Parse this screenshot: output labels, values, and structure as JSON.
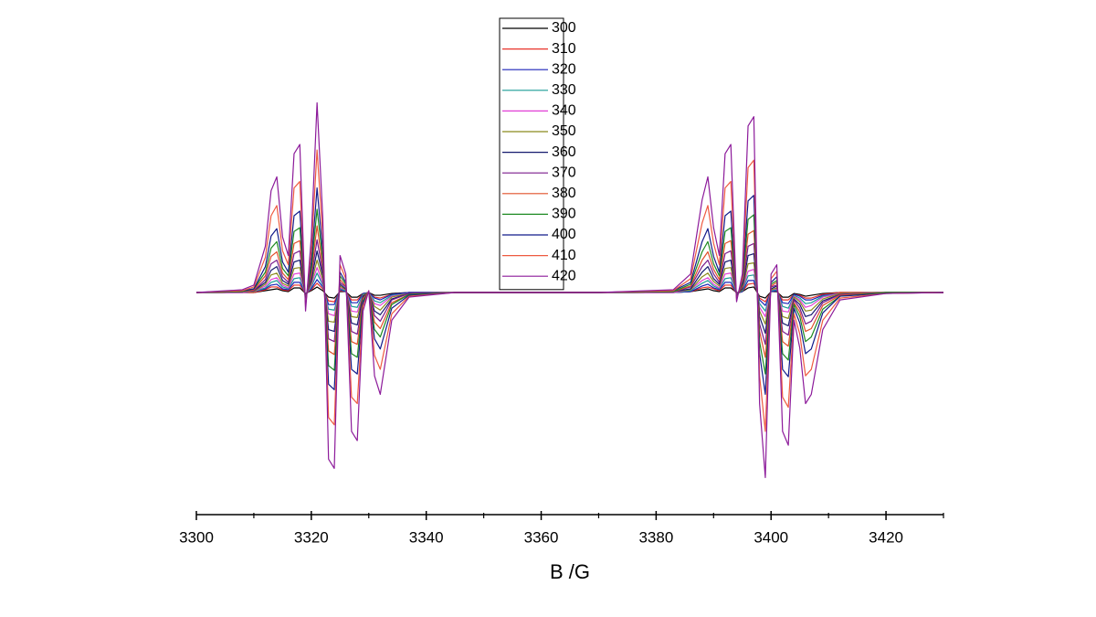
{
  "chart_data": {
    "type": "line",
    "xlabel": "B /G",
    "xlim": [
      3300,
      3430
    ],
    "xticks": [
      3300,
      3320,
      3340,
      3360,
      3380,
      3400,
      3420
    ],
    "xminor": [
      3310,
      3330,
      3350,
      3370,
      3390,
      3410,
      3430
    ],
    "ylim": [
      -240,
      245
    ],
    "legend": "top",
    "x": [
      3300,
      3308,
      3310,
      3312,
      3313,
      3314,
      3315,
      3316,
      3317,
      3318,
      3319,
      3320,
      3321,
      3322,
      3323,
      3324,
      3325,
      3326,
      3327,
      3328,
      3329,
      3330,
      3331,
      3332,
      3334,
      3337,
      3345,
      3370,
      3383,
      3386,
      3388,
      3389,
      3390,
      3391,
      3392,
      3393,
      3394,
      3395,
      3396,
      3397,
      3398,
      3399,
      3400,
      3401,
      3402,
      3403,
      3404,
      3405,
      3406,
      3407,
      3409,
      3412,
      3420,
      3430
    ],
    "series": [
      {
        "name": "300",
        "color": "#000000",
        "values": [
          0,
          0,
          0,
          2,
          3,
          4,
          2,
          1,
          5,
          5,
          -1,
          2,
          6,
          2,
          -5,
          -6,
          1,
          1,
          -5,
          -5,
          -1,
          0,
          -3,
          -3,
          -1,
          0,
          0,
          0,
          0,
          1,
          3,
          4,
          2,
          1,
          5,
          5,
          0,
          1,
          5,
          6,
          -4,
          -6,
          1,
          1,
          -5,
          -5,
          -1,
          -2,
          -4,
          -3,
          -1,
          0,
          0,
          0
        ]
      },
      {
        "name": "310",
        "color": "#e8322a",
        "values": [
          0,
          0,
          0,
          3,
          6,
          6,
          3,
          2,
          8,
          8,
          -1,
          3,
          10,
          4,
          -9,
          -10,
          2,
          1,
          -8,
          -8,
          -1,
          0,
          -5,
          -6,
          -2,
          0,
          0,
          0,
          0,
          1,
          5,
          6,
          4,
          2,
          8,
          8,
          -1,
          1,
          9,
          10,
          -6,
          -10,
          1,
          2,
          -8,
          -8,
          -2,
          -3,
          -6,
          -6,
          -2,
          0,
          0,
          0
        ]
      },
      {
        "name": "320",
        "color": "#1a23b8",
        "values": [
          0,
          0,
          1,
          4,
          8,
          9,
          4,
          3,
          11,
          11,
          -1,
          4,
          14,
          6,
          -13,
          -13,
          3,
          1,
          -11,
          -11,
          -1,
          0,
          -6,
          -8,
          -2,
          0,
          0,
          0,
          0,
          1,
          7,
          9,
          5,
          3,
          11,
          11,
          -1,
          1,
          13,
          13,
          -8,
          -14,
          1,
          2,
          -11,
          -12,
          -2,
          -4,
          -8,
          -8,
          -3,
          -1,
          0,
          0
        ]
      },
      {
        "name": "330",
        "color": "#1a9c95",
        "values": [
          0,
          0,
          1,
          5,
          11,
          13,
          6,
          4,
          15,
          16,
          -2,
          6,
          21,
          8,
          -18,
          -19,
          4,
          2,
          -15,
          -16,
          -2,
          0,
          -9,
          -11,
          -3,
          -1,
          0,
          0,
          0,
          2,
          10,
          13,
          7,
          4,
          15,
          16,
          -1,
          2,
          18,
          19,
          -12,
          -20,
          2,
          3,
          -15,
          -17,
          -3,
          -6,
          -12,
          -11,
          -4,
          -1,
          0,
          0
        ]
      },
      {
        "name": "340",
        "color": "#e23fd6",
        "values": [
          0,
          0,
          1,
          7,
          14,
          16,
          8,
          5,
          20,
          21,
          -3,
          8,
          27,
          10,
          -23,
          -25,
          5,
          3,
          -20,
          -21,
          -3,
          0,
          -12,
          -14,
          -4,
          -1,
          0,
          0,
          0,
          3,
          13,
          16,
          9,
          5,
          20,
          21,
          -1,
          3,
          23,
          25,
          -16,
          -26,
          3,
          4,
          -20,
          -21,
          -4,
          -8,
          -16,
          -14,
          -5,
          -1,
          0,
          0
        ]
      },
      {
        "name": "350",
        "color": "#8a8a1c",
        "values": [
          0,
          1,
          1,
          9,
          19,
          21,
          10,
          7,
          26,
          27,
          -3,
          10,
          35,
          14,
          -31,
          -32,
          7,
          3,
          -26,
          -27,
          -3,
          0,
          -15,
          -19,
          -5,
          -1,
          0,
          0,
          1,
          3,
          17,
          21,
          12,
          7,
          26,
          27,
          -2,
          3,
          31,
          32,
          -20,
          -34,
          3,
          5,
          -26,
          -28,
          -5,
          -10,
          -20,
          -19,
          -7,
          -1,
          0,
          0
        ]
      },
      {
        "name": "360",
        "color": "#151a6e",
        "values": [
          0,
          1,
          2,
          11,
          24,
          28,
          13,
          9,
          33,
          35,
          -4,
          13,
          45,
          18,
          -40,
          -42,
          9,
          4,
          -33,
          -35,
          -4,
          0,
          -20,
          -24,
          -7,
          -1,
          0,
          0,
          1,
          4,
          22,
          28,
          15,
          9,
          33,
          35,
          -2,
          4,
          40,
          42,
          -26,
          -44,
          4,
          7,
          -33,
          -36,
          -7,
          -13,
          -26,
          -24,
          -9,
          -2,
          0,
          0
        ]
      },
      {
        "name": "370",
        "color": "#7a1a8c",
        "values": [
          0,
          1,
          2,
          14,
          31,
          35,
          17,
          11,
          42,
          45,
          -6,
          17,
          57,
          22,
          -50,
          -53,
          11,
          6,
          -42,
          -45,
          -6,
          1,
          -25,
          -31,
          -8,
          -1,
          0,
          0,
          1,
          6,
          28,
          35,
          20,
          11,
          42,
          45,
          -3,
          6,
          50,
          53,
          -34,
          -56,
          6,
          8,
          -42,
          -46,
          -8,
          -17,
          -34,
          -31,
          -11,
          -2,
          0,
          0
        ]
      },
      {
        "name": "380",
        "color": "#e0502a",
        "values": [
          0,
          1,
          3,
          18,
          39,
          44,
          21,
          14,
          53,
          56,
          -7,
          21,
          72,
          28,
          -63,
          -67,
          14,
          7,
          -53,
          -56,
          -7,
          1,
          -32,
          -39,
          -11,
          -2,
          0,
          0,
          1,
          7,
          35,
          44,
          25,
          14,
          53,
          56,
          -4,
          7,
          63,
          67,
          -42,
          -70,
          7,
          11,
          -53,
          -58,
          -11,
          -21,
          -42,
          -39,
          -14,
          -3,
          0,
          0
        ]
      },
      {
        "name": "390",
        "color": "#1e8a22",
        "values": [
          0,
          1,
          4,
          22,
          48,
          55,
          26,
          18,
          66,
          70,
          -9,
          26,
          90,
          35,
          -79,
          -84,
          18,
          9,
          -66,
          -70,
          -9,
          1,
          -40,
          -48,
          -13,
          -2,
          0,
          0,
          1,
          9,
          44,
          55,
          31,
          18,
          66,
          70,
          -4,
          9,
          79,
          84,
          -53,
          -88,
          9,
          13,
          -66,
          -73,
          -13,
          -26,
          -53,
          -48,
          -18,
          -4,
          0,
          0
        ]
      },
      {
        "name": "400",
        "color": "#121a8a",
        "values": [
          0,
          2,
          4,
          28,
          61,
          69,
          33,
          22,
          83,
          88,
          -11,
          33,
          113,
          44,
          -99,
          -105,
          22,
          11,
          -83,
          -88,
          -11,
          1,
          -50,
          -61,
          -17,
          -3,
          0,
          0,
          2,
          11,
          55,
          69,
          39,
          22,
          83,
          88,
          -6,
          11,
          99,
          105,
          -66,
          -110,
          11,
          17,
          -83,
          -91,
          -17,
          -33,
          -66,
          -61,
          -22,
          -4,
          -1,
          0
        ]
      },
      {
        "name": "410",
        "color": "#ee5a40",
        "values": [
          0,
          2,
          6,
          38,
          83,
          94,
          45,
          30,
          113,
          120,
          -15,
          45,
          154,
          60,
          -135,
          -143,
          30,
          15,
          -113,
          -120,
          -15,
          2,
          -68,
          -83,
          -23,
          -4,
          0,
          0,
          2,
          15,
          75,
          94,
          53,
          30,
          113,
          120,
          -8,
          15,
          135,
          143,
          -90,
          -150,
          15,
          23,
          -113,
          -124,
          -23,
          -45,
          -90,
          -83,
          -30,
          -6,
          -1,
          0
        ]
      },
      {
        "name": "420",
        "color": "#8c1a9a",
        "values": [
          0,
          3,
          8,
          50,
          110,
          125,
          60,
          40,
          150,
          160,
          -20,
          60,
          205,
          80,
          -180,
          -190,
          40,
          20,
          -150,
          -160,
          -20,
          2,
          -90,
          -110,
          -30,
          -5,
          0,
          0,
          3,
          20,
          100,
          125,
          70,
          40,
          150,
          160,
          -10,
          20,
          180,
          190,
          -120,
          -200,
          20,
          30,
          -150,
          -165,
          -30,
          -60,
          -120,
          -110,
          -40,
          -8,
          -1,
          0
        ]
      }
    ]
  }
}
